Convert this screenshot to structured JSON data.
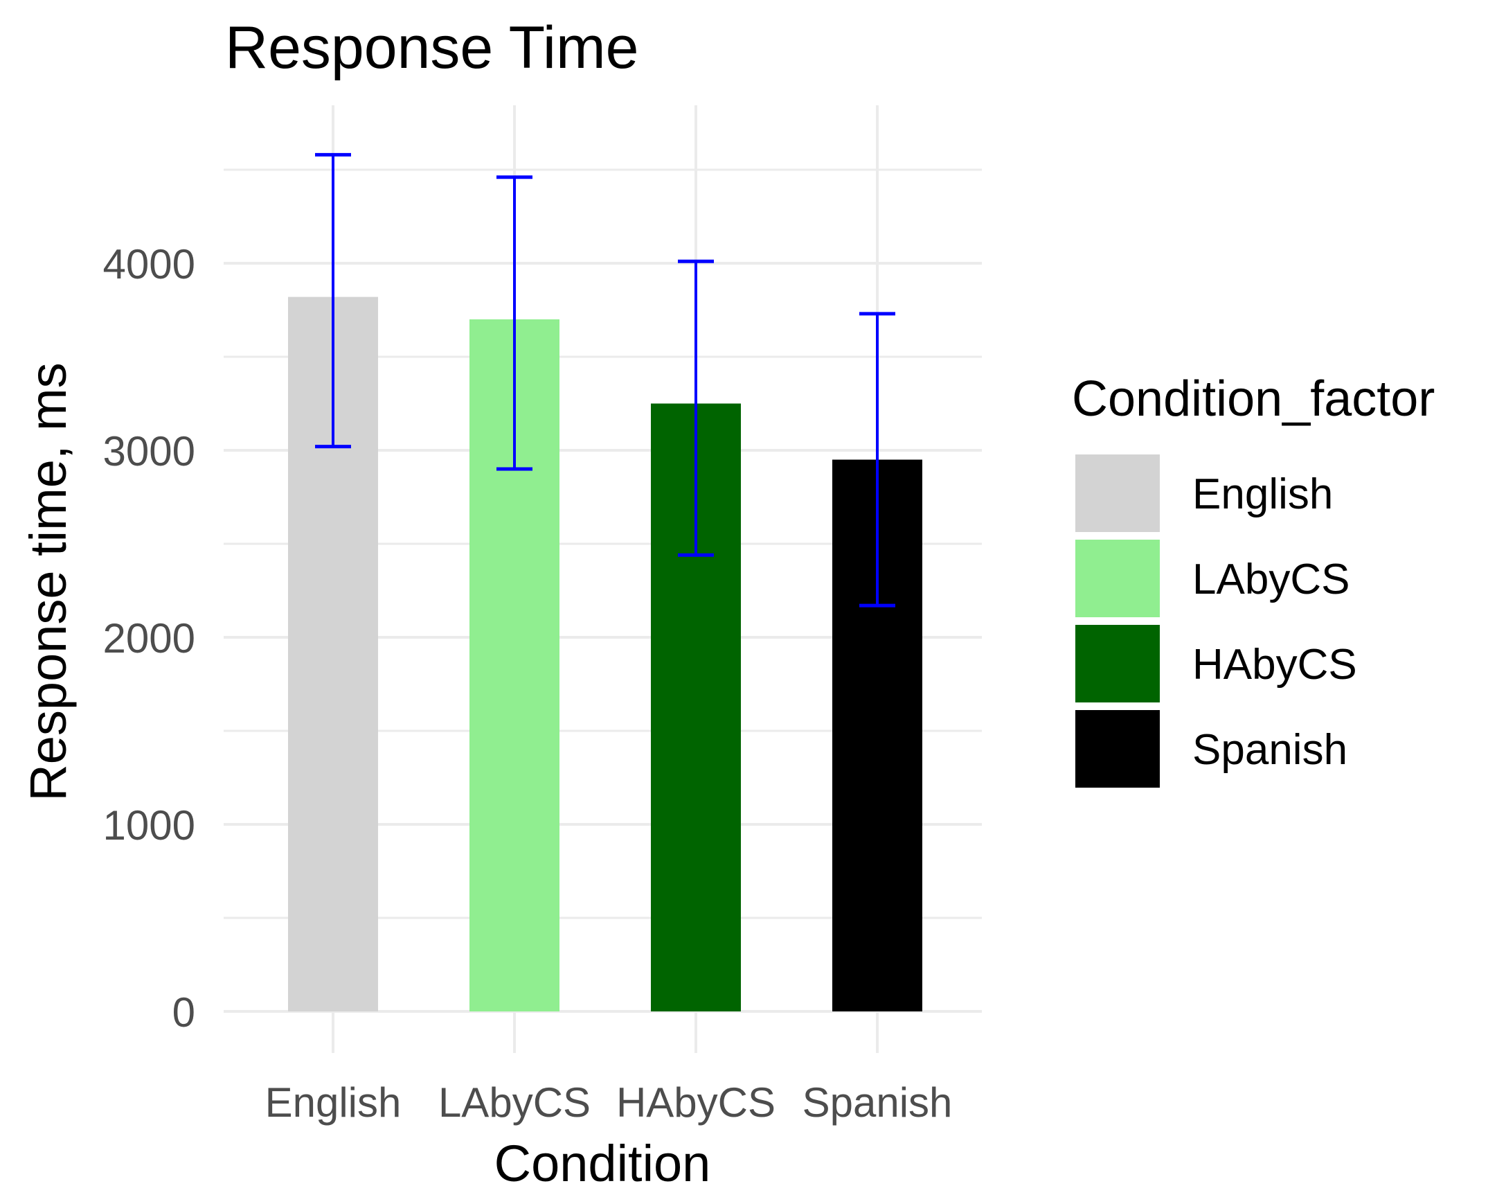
{
  "chart_data": {
    "type": "bar",
    "title": "Response Time",
    "xlabel": "Condition",
    "ylabel": "Response time, ms",
    "categories": [
      "English",
      "LAbyCS",
      "HAbyCS",
      "Spanish"
    ],
    "values": [
      3820,
      3700,
      3250,
      2950
    ],
    "error_bars": {
      "lower": [
        3020,
        2900,
        2440,
        2170
      ],
      "upper": [
        4580,
        4460,
        4010,
        3730
      ],
      "color": "#0000FF"
    },
    "colors": [
      "#D3D3D3",
      "#90EE90",
      "#006400",
      "#000000"
    ],
    "ylim": [
      0,
      4700
    ],
    "yticks": [
      0,
      1000,
      2000,
      3000,
      4000
    ],
    "ytick_labels": [
      "0",
      "1000",
      "2000",
      "3000",
      "4000"
    ],
    "grid": true,
    "legend": {
      "title": "Condition_factor",
      "position": "right",
      "entries": [
        "English",
        "LAbyCS",
        "HAbyCS",
        "Spanish"
      ]
    }
  }
}
